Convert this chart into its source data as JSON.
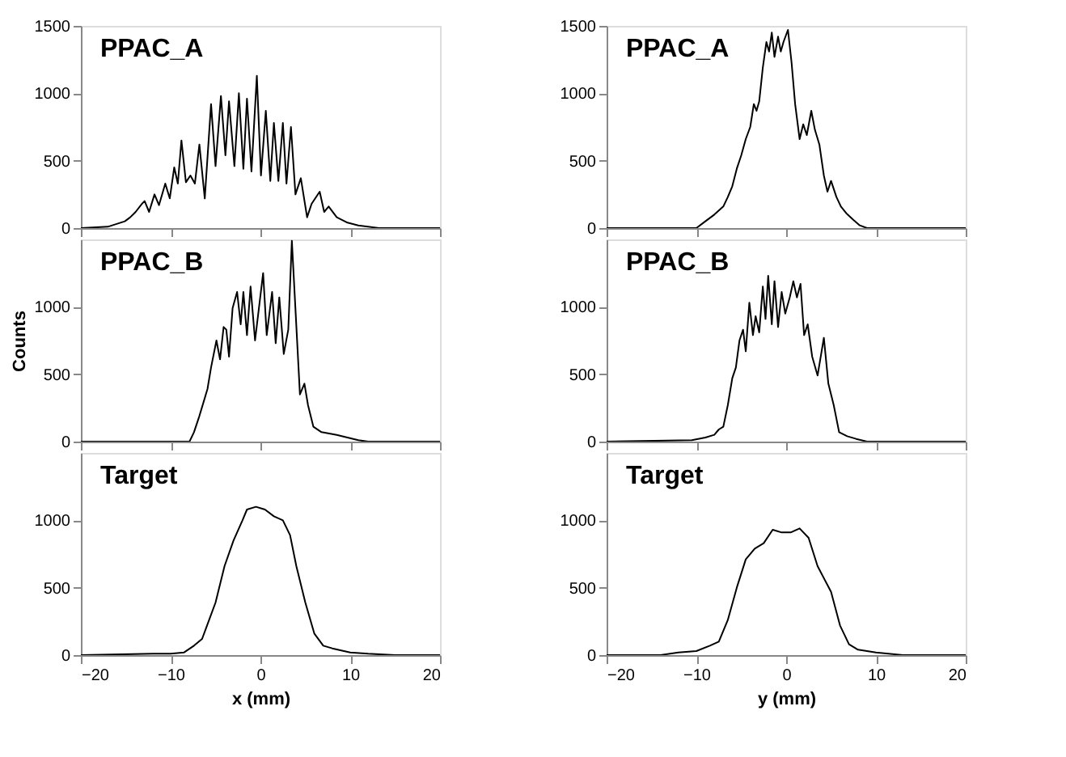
{
  "chart_data": [
    {
      "type": "line",
      "annotations": [
        "PPAC_A"
      ],
      "xlim": [
        -20,
        20
      ],
      "ylim": [
        0,
        1500
      ],
      "xticks": [
        -20,
        -10,
        0,
        10,
        20
      ],
      "yticks": [
        0,
        500,
        1000,
        1500
      ],
      "tick_labels": "y",
      "grid": false,
      "x": [
        -20,
        -17,
        -15.1,
        -14.5,
        -13.9,
        -13.2,
        -12.9,
        -12.4,
        -11.8,
        -11.3,
        -10.6,
        -10.1,
        -9.6,
        -9.2,
        -8.8,
        -8.3,
        -7.8,
        -7.3,
        -6.8,
        -6.2,
        -5.5,
        -5.0,
        -4.4,
        -3.9,
        -3.5,
        -2.9,
        -2.4,
        -1.9,
        -1.5,
        -1.0,
        -0.4,
        0.06,
        0.6,
        1.1,
        1.5,
        2.0,
        2.5,
        2.9,
        3.4,
        3.9,
        4.5,
        5.2,
        5.7,
        6.6,
        7.1,
        7.6,
        8.5,
        9.7,
        10.9,
        13.2,
        20
      ],
      "series": [
        {
          "color": "#000000",
          "values": [
            0,
            10,
            50,
            80,
            120,
            180,
            200,
            120,
            250,
            170,
            330,
            220,
            450,
            330,
            650,
            340,
            390,
            330,
            620,
            220,
            920,
            460,
            980,
            540,
            940,
            460,
            1000,
            440,
            960,
            420,
            1130,
            390,
            870,
            350,
            780,
            350,
            780,
            330,
            750,
            250,
            370,
            80,
            180,
            270,
            120,
            160,
            80,
            40,
            20,
            0,
            0
          ]
        }
      ]
    },
    {
      "type": "line",
      "annotations": [
        "PPAC_A"
      ],
      "xlim": [
        -20,
        20
      ],
      "ylim": [
        0,
        1500
      ],
      "xticks": [
        -20,
        -10,
        0,
        10,
        20
      ],
      "yticks": [
        0,
        500,
        1000,
        1500
      ],
      "tick_labels": "y",
      "grid": false,
      "x": [
        -20,
        -12,
        -10,
        -9,
        -8,
        -7.5,
        -7,
        -6.5,
        -6,
        -5.5,
        -5,
        -4.5,
        -4,
        -3.6,
        -3.3,
        -3,
        -2.6,
        -2.2,
        -1.9,
        -1.6,
        -1.3,
        -0.9,
        -0.6,
        -0.3,
        0.2,
        0.6,
        1.0,
        1.5,
        1.9,
        2.3,
        2.8,
        3.2,
        3.7,
        4.2,
        4.6,
        5.0,
        5.6,
        6.1,
        6.7,
        7.5,
        8.2,
        9,
        12,
        20
      ],
      "series": [
        {
          "color": "#000000",
          "values": [
            0,
            0,
            0,
            50,
            100,
            130,
            160,
            230,
            310,
            440,
            540,
            660,
            750,
            920,
            870,
            940,
            1190,
            1380,
            1310,
            1450,
            1270,
            1420,
            1310,
            1380,
            1470,
            1230,
            920,
            660,
            770,
            690,
            870,
            730,
            620,
            390,
            270,
            350,
            230,
            160,
            110,
            60,
            20,
            0,
            0,
            0
          ]
        }
      ]
    },
    {
      "type": "line",
      "annotations": [
        "PPAC_B"
      ],
      "ylabel": "Counts",
      "xlim": [
        -20,
        20
      ],
      "ylim": [
        0,
        1500
      ],
      "xticks": [
        -20,
        -10,
        0,
        10,
        20
      ],
      "yticks": [
        0,
        500,
        1000
      ],
      "tick_labels": "y",
      "grid": false,
      "x": [
        -20,
        -7.9,
        -7.4,
        -6.8,
        -5.9,
        -5.5,
        -4.9,
        -4.5,
        -4.1,
        -3.8,
        -3.5,
        -3.1,
        -2.6,
        -2.2,
        -1.9,
        -1.5,
        -1.1,
        -0.6,
        0.3,
        0.7,
        1.3,
        1.7,
        2.1,
        2.6,
        3.1,
        3.5,
        4.4,
        4.9,
        5.3,
        5.9,
        6.8,
        8.5,
        9.7,
        10.9,
        12,
        20
      ],
      "series": [
        {
          "color": "#000000",
          "values": [
            0,
            0,
            70,
            190,
            390,
            550,
            750,
            610,
            850,
            830,
            630,
            990,
            1110,
            870,
            1110,
            790,
            1150,
            750,
            1250,
            790,
            1110,
            730,
            1070,
            650,
            830,
            1490,
            350,
            430,
            270,
            110,
            70,
            50,
            30,
            10,
            0,
            0
          ]
        }
      ]
    },
    {
      "type": "line",
      "annotations": [
        "PPAC_B"
      ],
      "xlim": [
        -20,
        20
      ],
      "ylim": [
        0,
        1500
      ],
      "xticks": [
        -20,
        -10,
        0,
        10,
        20
      ],
      "yticks": [
        0,
        500,
        1000
      ],
      "tick_labels": "y",
      "grid": false,
      "x": [
        -20,
        -10.5,
        -9,
        -8,
        -7.5,
        -7,
        -6.5,
        -6,
        -5.6,
        -5.2,
        -4.8,
        -4.5,
        -4.1,
        -3.7,
        -3.4,
        -3.0,
        -2.6,
        -2.3,
        -2.0,
        -1.6,
        -1.3,
        -0.9,
        -0.5,
        -0.1,
        0.4,
        0.8,
        1.2,
        1.6,
        2.0,
        2.4,
        2.9,
        3.5,
        4.2,
        4.7,
        5.3,
        5.9,
        6.8,
        7.8,
        9,
        10,
        20
      ],
      "series": [
        {
          "color": "#000000",
          "values": [
            0,
            10,
            30,
            50,
            90,
            110,
            270,
            470,
            550,
            750,
            830,
            670,
            1030,
            790,
            930,
            810,
            1150,
            910,
            1230,
            870,
            1190,
            850,
            1110,
            950,
            1070,
            1190,
            1070,
            1170,
            790,
            870,
            630,
            490,
            770,
            430,
            270,
            70,
            40,
            20,
            0,
            0,
            0
          ]
        }
      ]
    },
    {
      "type": "line",
      "annotations": [
        "Target"
      ],
      "xlabel": "x (mm)",
      "xlim": [
        -20,
        20
      ],
      "ylim": [
        0,
        1500
      ],
      "xticks": [
        -20,
        -10,
        0,
        10,
        20
      ],
      "yticks": [
        0,
        500,
        1000
      ],
      "grid": false,
      "x": [
        -20,
        -12,
        -10,
        -8.5,
        -7.4,
        -6.5,
        -5,
        -4,
        -3,
        -2,
        -1.5,
        -0.5,
        0.5,
        1.5,
        2.5,
        3.3,
        4,
        5,
        6,
        7,
        8,
        10,
        12,
        15,
        20
      ],
      "series": [
        {
          "color": "#000000",
          "values": [
            0,
            10,
            10,
            20,
            70,
            120,
            390,
            660,
            850,
            1000,
            1080,
            1100,
            1080,
            1030,
            1000,
            890,
            660,
            390,
            160,
            70,
            50,
            20,
            10,
            0,
            0
          ]
        }
      ]
    },
    {
      "type": "line",
      "annotations": [
        "Target"
      ],
      "xlabel": "y (mm)",
      "xlim": [
        -20,
        20
      ],
      "ylim": [
        0,
        1500
      ],
      "xticks": [
        -20,
        -10,
        0,
        10,
        20
      ],
      "yticks": [
        0,
        500,
        1000
      ],
      "grid": false,
      "x": [
        -20,
        -14,
        -12,
        -10,
        -8.5,
        -7.5,
        -6.5,
        -5.5,
        -4.5,
        -3.5,
        -2.5,
        -1.5,
        -0.5,
        0.5,
        1.5,
        2.5,
        3.5,
        5,
        6,
        7,
        8,
        10,
        13,
        20
      ],
      "series": [
        {
          "color": "#000000",
          "values": [
            0,
            0,
            20,
            30,
            70,
            100,
            260,
            500,
            710,
            790,
            830,
            930,
            910,
            910,
            940,
            870,
            660,
            470,
            220,
            80,
            40,
            20,
            0,
            0
          ]
        }
      ]
    }
  ]
}
